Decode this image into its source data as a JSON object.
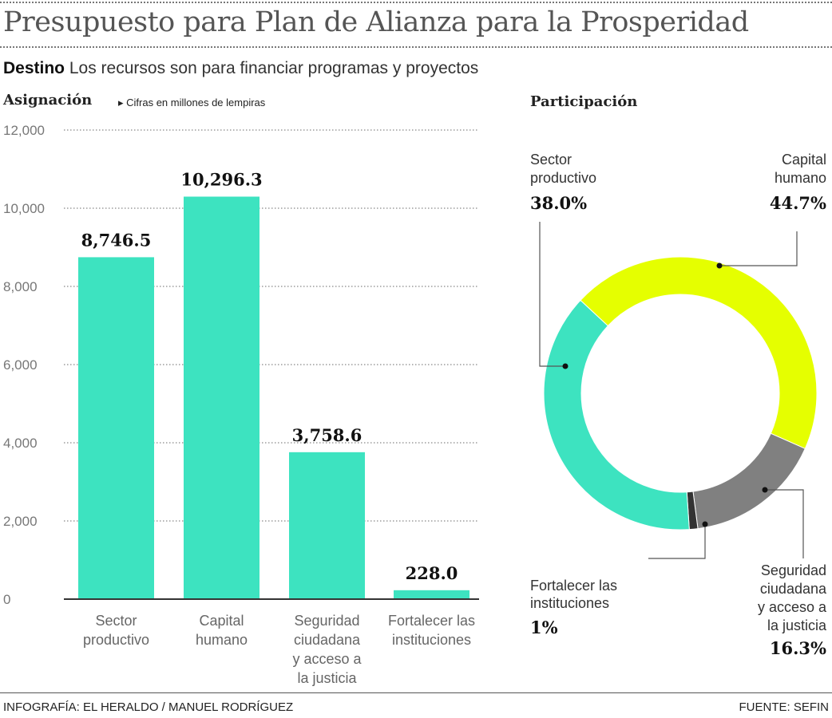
{
  "title": "Presupuesto para Plan de Alianza para la Prosperidad",
  "subtitle": {
    "lead": "Destino",
    "text": "Los recursos son para financiar programas y proyectos"
  },
  "footer": {
    "credit": "INFOGRAFÍA: EL HERALDO / MANUEL RODRÍGUEZ",
    "source": "FUENTE: SEFIN"
  },
  "colors": {
    "teal": "#3de3c0",
    "yellow": "#e5ff00",
    "gray": "#808080",
    "dark": "#333333"
  },
  "chart_data": [
    {
      "type": "bar",
      "title": "Asignación",
      "subtitle": "Cifras en millones de lempiras",
      "categories": [
        [
          "Sector",
          "productivo"
        ],
        [
          "Capital",
          "humano"
        ],
        [
          "Seguridad",
          "ciudadana",
          "y acceso a",
          "la justicia"
        ],
        [
          "Fortalecer las",
          "instituciones"
        ]
      ],
      "values": [
        8746.5,
        10296.3,
        3758.6,
        228.0
      ],
      "value_labels": [
        "8,746.5",
        "10,296.3",
        "3,758.6",
        "228.0"
      ],
      "ylim": [
        0,
        12000
      ],
      "yticks": [
        0,
        2000,
        4000,
        6000,
        8000,
        10000,
        12000
      ],
      "ytick_labels": [
        "0",
        "2,000",
        "4,000",
        "6,000",
        "8,000",
        "10,000",
        "12,000"
      ],
      "grid": true,
      "color": "#3de3c0"
    },
    {
      "type": "pie",
      "donut": true,
      "title": "Participación",
      "slices": [
        {
          "label": [
            "Capital",
            "humano"
          ],
          "value": 44.7,
          "value_label": "44.7%",
          "color": "#e5ff00"
        },
        {
          "label": [
            "Seguridad",
            "ciudadana",
            "y acceso a",
            "la justicia"
          ],
          "value": 16.3,
          "value_label": "16.3%",
          "color": "#808080"
        },
        {
          "label": [
            "Fortalecer las",
            "instituciones"
          ],
          "value": 1,
          "value_label": "1%",
          "color": "#333333"
        },
        {
          "label": [
            "Sector",
            "productivo"
          ],
          "value": 38.0,
          "value_label": "38.0%",
          "color": "#3de3c0"
        }
      ]
    }
  ]
}
